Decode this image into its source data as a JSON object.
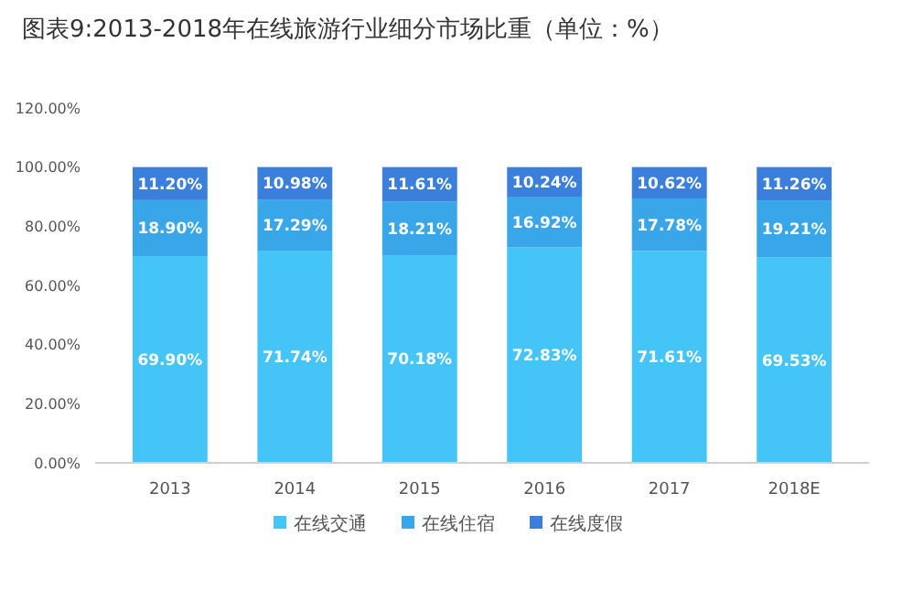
{
  "chart_data": {
    "type": "bar",
    "title": "图表9:2013-2018年在线旅游行业细分市场比重（单位：%）",
    "categories": [
      "2013",
      "2014",
      "2015",
      "2016",
      "2017",
      "2018E"
    ],
    "stacked": true,
    "legend": "bottom",
    "grid": false,
    "ylim": [
      0,
      120
    ],
    "yticks": [
      {
        "value": 0,
        "label": "0.00%"
      },
      {
        "value": 20,
        "label": "20.00%"
      },
      {
        "value": 40,
        "label": "40.00%"
      },
      {
        "value": 60,
        "label": "60.00%"
      },
      {
        "value": 80,
        "label": "80.00%"
      },
      {
        "value": 100,
        "label": "100.00%"
      },
      {
        "value": 120,
        "label": "120.00%"
      }
    ],
    "series": [
      {
        "name": "在线交通",
        "color": "#45c4f7",
        "values": [
          69.9,
          71.74,
          70.18,
          72.83,
          71.61,
          69.53
        ],
        "value_labels": [
          "69.90%",
          "71.74%",
          "70.18%",
          "72.83%",
          "71.61%",
          "69.53%"
        ]
      },
      {
        "name": "在线住宿",
        "color": "#39a6ea",
        "values": [
          18.9,
          17.29,
          18.21,
          16.92,
          17.78,
          19.21
        ],
        "value_labels": [
          "18.90%",
          "17.29%",
          "18.21%",
          "16.92%",
          "17.78%",
          "19.21%"
        ]
      },
      {
        "name": "在线度假",
        "color": "#3b7fdc",
        "values": [
          11.2,
          10.98,
          11.61,
          10.24,
          10.62,
          11.26
        ],
        "value_labels": [
          "11.20%",
          "10.98%",
          "11.61%",
          "10.24%",
          "10.62%",
          "11.26%"
        ]
      }
    ]
  }
}
